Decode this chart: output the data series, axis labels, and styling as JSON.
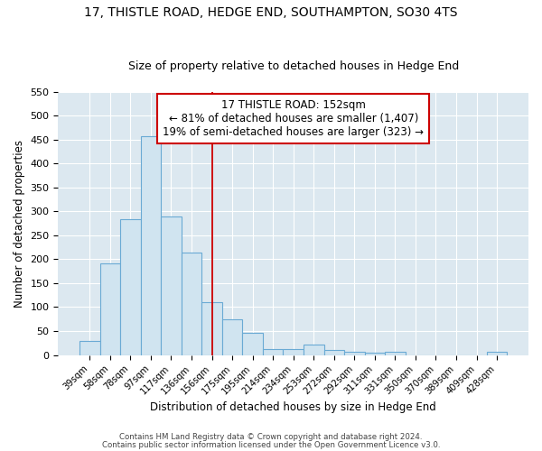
{
  "title1": "17, THISTLE ROAD, HEDGE END, SOUTHAMPTON, SO30 4TS",
  "title2": "Size of property relative to detached houses in Hedge End",
  "xlabel": "Distribution of detached houses by size in Hedge End",
  "ylabel": "Number of detached properties",
  "categories": [
    "39sqm",
    "58sqm",
    "78sqm",
    "97sqm",
    "117sqm",
    "136sqm",
    "156sqm",
    "175sqm",
    "195sqm",
    "214sqm",
    "234sqm",
    "253sqm",
    "272sqm",
    "292sqm",
    "311sqm",
    "331sqm",
    "350sqm",
    "370sqm",
    "389sqm",
    "409sqm",
    "428sqm"
  ],
  "values": [
    30,
    192,
    283,
    457,
    289,
    213,
    110,
    75,
    47,
    13,
    12,
    22,
    10,
    6,
    5,
    7,
    0,
    0,
    0,
    0,
    6
  ],
  "bar_color": "#d0e4f0",
  "bar_edge_color": "#6aaad4",
  "vline_x": 6,
  "vline_color": "#cc0000",
  "annotation_text": "17 THISTLE ROAD: 152sqm\n← 81% of detached houses are smaller (1,407)\n19% of semi-detached houses are larger (323) →",
  "annotation_box_color": "#ffffff",
  "annotation_border_color": "#cc0000",
  "ylim": [
    0,
    550
  ],
  "yticks": [
    0,
    50,
    100,
    150,
    200,
    250,
    300,
    350,
    400,
    450,
    500,
    550
  ],
  "fig_bg_color": "#ffffff",
  "background_color": "#dce8f0",
  "footer_line1": "Contains HM Land Registry data © Crown copyright and database right 2024.",
  "footer_line2": "Contains public sector information licensed under the Open Government Licence v3.0.",
  "title_fontsize": 10,
  "subtitle_fontsize": 9,
  "annotation_fontsize": 8.5
}
